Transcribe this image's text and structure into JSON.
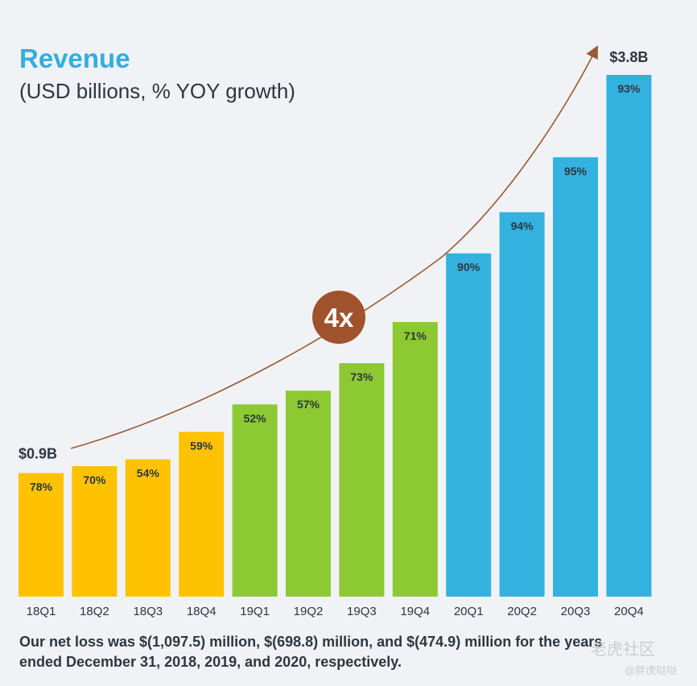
{
  "title": "Revenue",
  "subtitle": "(USD billions, % YOY growth)",
  "footnote": "Our net loss was $(1,097.5) million, $(698.8) million, and $(474.9) million for the years ended December 31, 2018, 2019, and 2020, respectively.",
  "watermark": "老虎社区",
  "watermark_handle": "@胖虎哒哒",
  "colors": {
    "y2018": "#ffc200",
    "y2019": "#8cc932",
    "y2020": "#33b2e0",
    "arrow": "#9b5a35",
    "badge": "#a0522d",
    "text": "#2d3741"
  },
  "chart_data": {
    "type": "bar",
    "categories": [
      "18Q1",
      "18Q2",
      "18Q3",
      "18Q4",
      "19Q1",
      "19Q2",
      "19Q3",
      "19Q4",
      "20Q1",
      "20Q2",
      "20Q3",
      "20Q4"
    ],
    "values": [
      0.9,
      0.95,
      1.0,
      1.2,
      1.4,
      1.5,
      1.7,
      2.0,
      2.5,
      2.8,
      3.2,
      3.8
    ],
    "growth_labels": [
      "78%",
      "70%",
      "54%",
      "59%",
      "52%",
      "57%",
      "73%",
      "71%",
      "90%",
      "94%",
      "95%",
      "93%"
    ],
    "value_annotations": [
      {
        "index": 0,
        "text": "$0.9B"
      },
      {
        "index": 11,
        "text": "$3.8B"
      }
    ],
    "growth_callout": "4x",
    "ylim": [
      0,
      3.8
    ],
    "grid": false,
    "legend": "none"
  }
}
